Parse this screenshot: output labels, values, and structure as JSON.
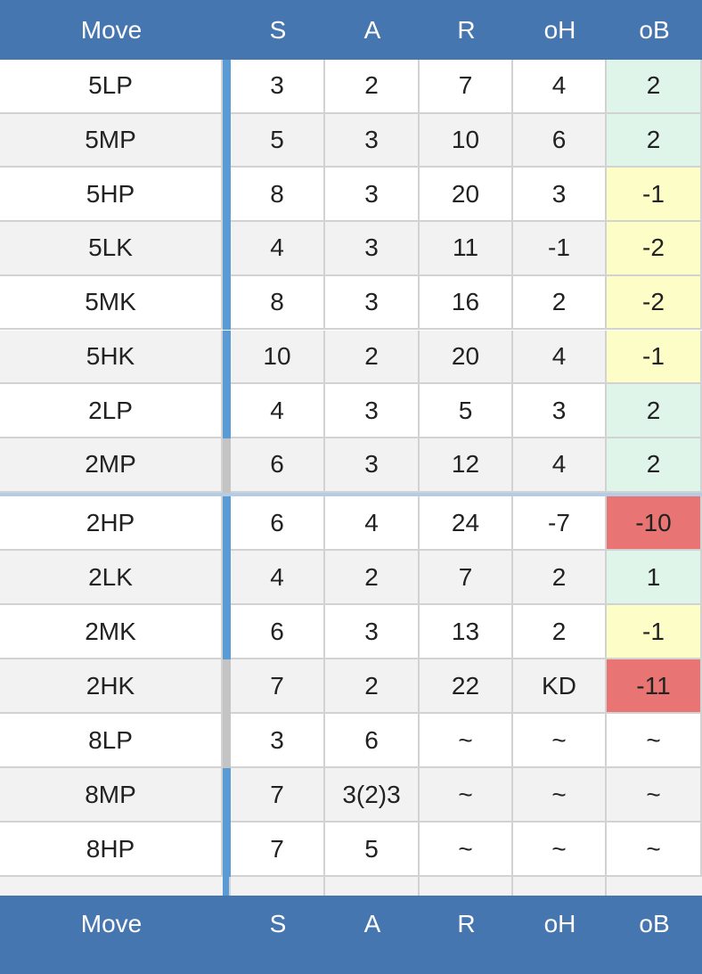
{
  "header": {
    "columns": [
      "Move",
      "S",
      "A",
      "R",
      "oH",
      "oB"
    ]
  },
  "table": {
    "rows": [
      {
        "cells": [
          "5LP",
          3,
          2,
          7,
          4,
          2
        ],
        "marker": "#5b9bd5"
      },
      {
        "cells": [
          "5MP",
          5,
          3,
          10,
          6,
          2
        ],
        "marker": "#5b9bd5"
      },
      {
        "cells": [
          "5HP",
          8,
          3,
          20,
          3,
          -1
        ],
        "marker": "#5b9bd5"
      },
      {
        "cells": [
          "5LK",
          4,
          3,
          11,
          -1,
          -2
        ],
        "marker": "#5b9bd5"
      },
      {
        "cells": [
          "5MK",
          8,
          3,
          16,
          2,
          -2
        ],
        "marker": "#5b9bd5"
      },
      {
        "cells": [
          "5HK",
          10,
          2,
          20,
          4,
          -1
        ],
        "marker": "#5b9bd5"
      },
      {
        "cells": [
          "2LP",
          4,
          3,
          5,
          3,
          2
        ],
        "marker": "#5b9bd5"
      },
      {
        "cells": [
          "2MP",
          6,
          3,
          12,
          4,
          2
        ],
        "marker": "#c4c4c4"
      },
      {
        "cells": [
          "2HP",
          6,
          4,
          24,
          -7,
          -10
        ],
        "marker": "#5b9bd5"
      },
      {
        "cells": [
          "2LK",
          4,
          2,
          7,
          2,
          1
        ],
        "marker": "#5b9bd5"
      },
      {
        "cells": [
          "2MK",
          6,
          3,
          13,
          2,
          -1
        ],
        "marker": "#5b9bd5"
      },
      {
        "cells": [
          "2HK",
          7,
          2,
          22,
          "KD",
          -11
        ],
        "marker": "#c4c4c4"
      },
      {
        "cells": [
          "8LP",
          3,
          6,
          "~",
          "~",
          "~"
        ],
        "marker": "#c4c4c4"
      },
      {
        "cells": [
          "8MP",
          7,
          "3(2)3",
          "~",
          "~",
          "~"
        ],
        "marker": "#5b9bd5"
      },
      {
        "cells": [
          "8HP",
          7,
          5,
          "~",
          "~",
          "~"
        ],
        "marker": "#5b9bd5"
      }
    ]
  },
  "footer": {
    "columns": [
      "Move",
      "S",
      "A",
      "R",
      "oH",
      "oB"
    ]
  }
}
